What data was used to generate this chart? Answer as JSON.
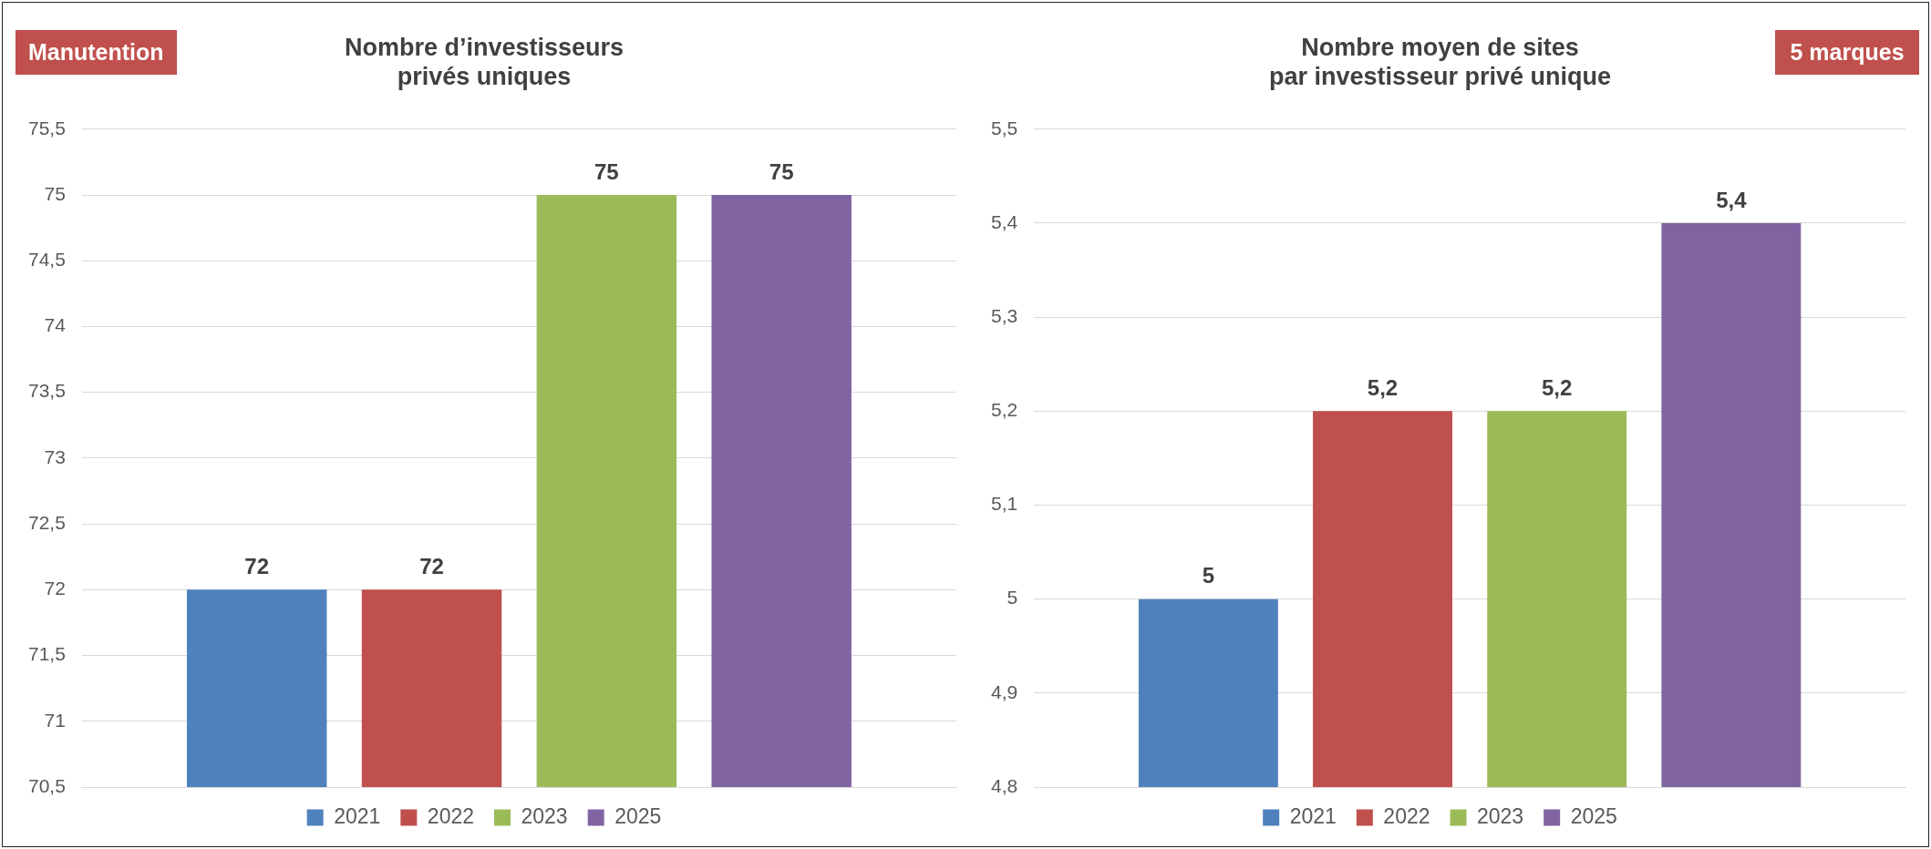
{
  "chart_data": [
    {
      "type": "bar",
      "title": "Nombre d’investisseurs\nprivés uniques",
      "categories": [
        null
      ],
      "series": [
        {
          "name": "2021",
          "color": "#4f81bd",
          "values": [
            72
          ],
          "value_labels": [
            "72"
          ]
        },
        {
          "name": "2022",
          "color": "#c0504d",
          "values": [
            72
          ],
          "value_labels": [
            "72"
          ]
        },
        {
          "name": "2023",
          "color": "#9bbb59",
          "values": [
            75
          ],
          "value_labels": [
            "75"
          ]
        },
        {
          "name": "2025",
          "color": "#8064a2",
          "values": [
            75
          ],
          "value_labels": [
            "75"
          ]
        }
      ],
      "ylim": [
        70.5,
        75.5
      ],
      "yticks": [
        {
          "value": 70.5,
          "label": "70,5"
        },
        71,
        {
          "value": 71.5,
          "label": "71,5"
        },
        72,
        {
          "value": 72.5,
          "label": "72,5"
        },
        73,
        {
          "value": 73.5,
          "label": "73,5"
        },
        74,
        {
          "value": 74.5,
          "label": "74,5"
        },
        75,
        {
          "value": 75.5,
          "label": "75,5"
        }
      ],
      "grid": "y",
      "legend": "bottom",
      "tick_labels": "y",
      "annotations": [
        "Manutention"
      ]
    },
    {
      "type": "bar",
      "title": "Nombre moyen de sites\npar investisseur privé unique",
      "categories": [
        null
      ],
      "series": [
        {
          "name": "2021",
          "color": "#4f81bd",
          "values": [
            5
          ],
          "value_labels": [
            "5"
          ]
        },
        {
          "name": "2022",
          "color": "#c0504d",
          "values": [
            5.2
          ],
          "value_labels": [
            "5,2"
          ]
        },
        {
          "name": "2023",
          "color": "#9bbb59",
          "values": [
            5.2
          ],
          "value_labels": [
            "5,2"
          ]
        },
        {
          "name": "2025",
          "color": "#8064a2",
          "values": [
            5.4
          ],
          "value_labels": [
            "5,4"
          ]
        }
      ],
      "ylim": [
        4.8,
        5.5
      ],
      "yticks": [
        {
          "value": 4.8,
          "label": "4,8"
        },
        {
          "value": 4.9,
          "label": "4,9"
        },
        5,
        {
          "value": 5.1,
          "label": "5,1"
        },
        {
          "value": 5.2,
          "label": "5,2"
        },
        {
          "value": 5.3,
          "label": "5,3"
        },
        {
          "value": 5.4,
          "label": "5,4"
        },
        {
          "value": 5.5,
          "label": "5,5"
        }
      ],
      "grid": "y",
      "legend": "bottom",
      "tick_labels": "y",
      "annotations": [
        "5 marques"
      ]
    }
  ]
}
